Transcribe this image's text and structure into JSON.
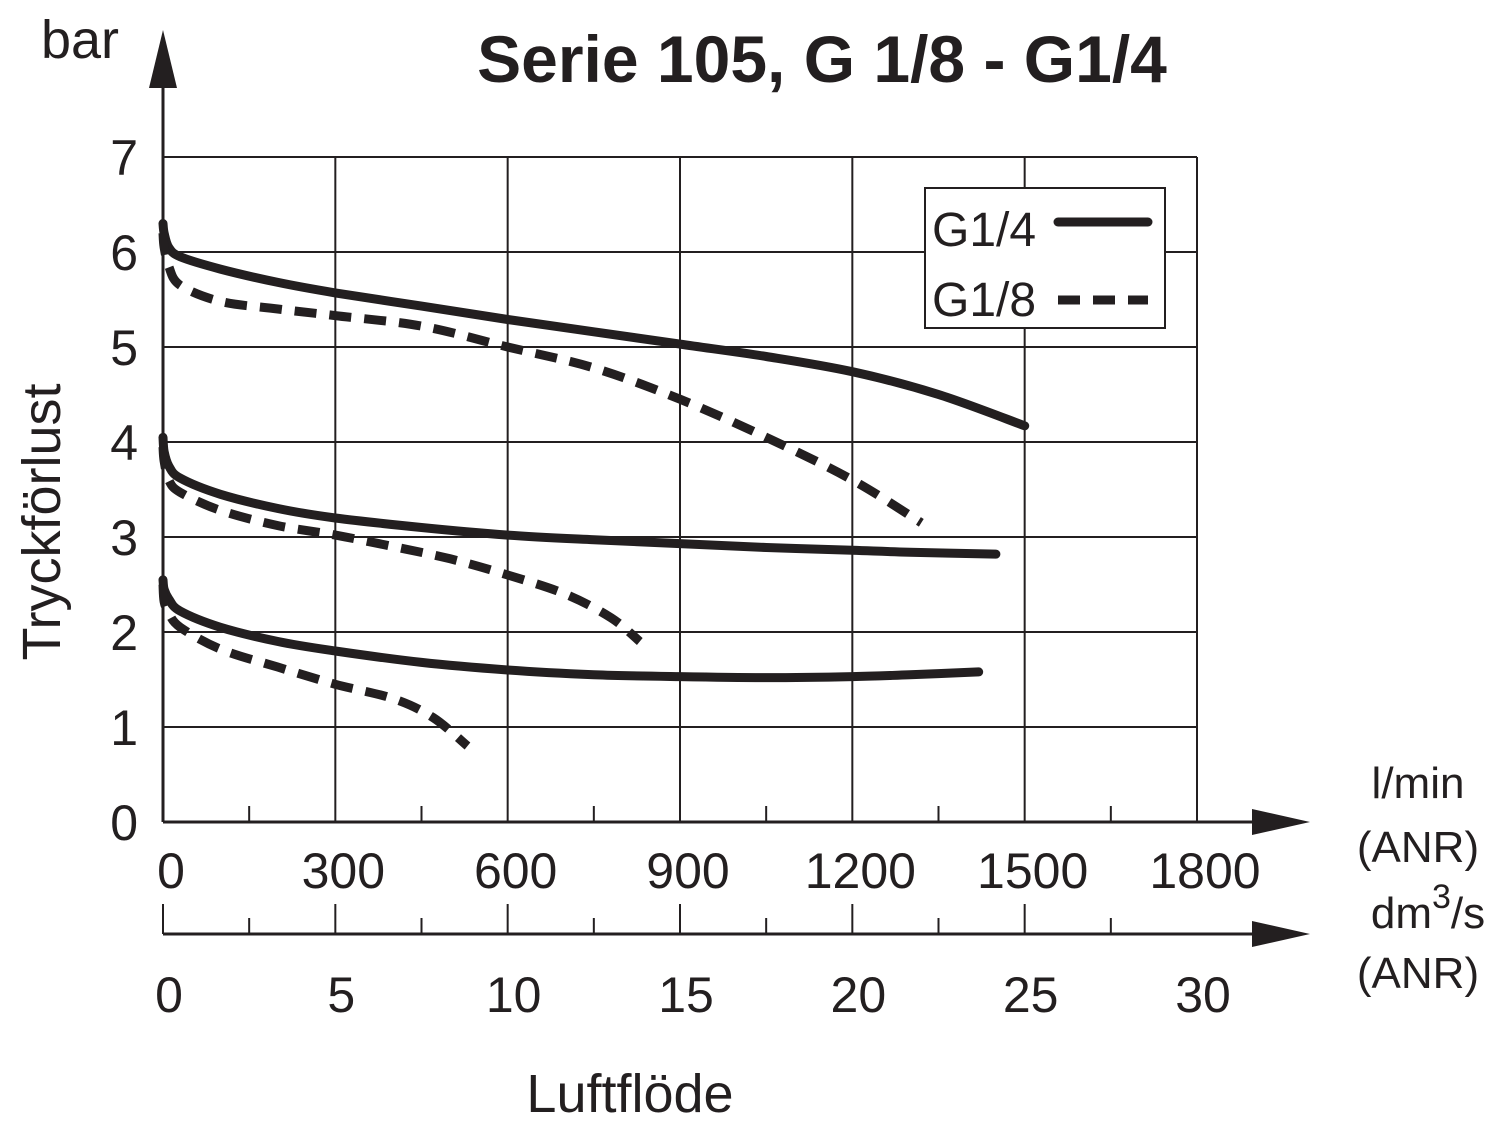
{
  "chart_data": {
    "type": "line",
    "title": "Serie 105, G 1/8 - G1/4",
    "ylabel": "Tryckförlust",
    "yunit": "bar",
    "xlabel": "Luftflöde",
    "ylim": [
      0,
      7
    ],
    "yticks": [
      "0",
      "1",
      "2",
      "3",
      "4",
      "5",
      "6",
      "7"
    ],
    "xlim": [
      0,
      1800
    ],
    "xticks_primary": [
      "0",
      "300",
      "600",
      "900",
      "1200",
      "1500",
      "1800"
    ],
    "xticks_secondary": [
      "0",
      "5",
      "10",
      "15",
      "20",
      "25",
      "30"
    ],
    "x_unit_primary": [
      "l/min",
      "(ANR)"
    ],
    "x_unit_secondary": {
      "base": "dm",
      "sup": "3",
      "tail": "/s",
      "line2": "(ANR)"
    },
    "grid": true,
    "legend_position": "top-right",
    "legend": [
      {
        "label": "G1/4",
        "style": "solid"
      },
      {
        "label": "G1/8",
        "style": "dashed"
      }
    ],
    "series": [
      {
        "legend": "G1/4",
        "style": "solid",
        "x": [
          0,
          2,
          10,
          30,
          100,
          200,
          300,
          450,
          600,
          750,
          900,
          1050,
          1200,
          1350,
          1500
        ],
        "y": [
          6.3,
          6.2,
          6.05,
          5.95,
          5.82,
          5.68,
          5.57,
          5.43,
          5.29,
          5.16,
          5.03,
          4.9,
          4.74,
          4.5,
          4.17
        ]
      },
      {
        "legend": "G1/8",
        "style": "dashed",
        "x": [
          0,
          2,
          10,
          30,
          100,
          200,
          300,
          450,
          600,
          750,
          900,
          1050,
          1200,
          1320
        ],
        "y": [
          6.2,
          6.05,
          5.85,
          5.65,
          5.48,
          5.4,
          5.33,
          5.22,
          5.0,
          4.78,
          4.45,
          4.05,
          3.6,
          3.15
        ]
      },
      {
        "legend": "G1/4",
        "style": "solid",
        "x": [
          0,
          2,
          10,
          30,
          100,
          200,
          300,
          450,
          600,
          750,
          900,
          1050,
          1200,
          1300,
          1450
        ],
        "y": [
          4.05,
          3.9,
          3.75,
          3.62,
          3.45,
          3.3,
          3.2,
          3.1,
          3.02,
          2.97,
          2.93,
          2.89,
          2.86,
          2.84,
          2.82
        ]
      },
      {
        "legend": "G1/8",
        "style": "dashed",
        "x": [
          0,
          2,
          10,
          30,
          100,
          200,
          300,
          400,
          500,
          600,
          700,
          780,
          830
        ],
        "y": [
          3.95,
          3.8,
          3.6,
          3.47,
          3.28,
          3.12,
          3.02,
          2.9,
          2.77,
          2.6,
          2.4,
          2.15,
          1.9
        ]
      },
      {
        "legend": "G1/4",
        "style": "solid",
        "x": [
          0,
          2,
          10,
          30,
          100,
          200,
          300,
          450,
          600,
          750,
          900,
          1050,
          1200,
          1300,
          1420
        ],
        "y": [
          2.55,
          2.45,
          2.35,
          2.22,
          2.05,
          1.9,
          1.8,
          1.68,
          1.6,
          1.55,
          1.53,
          1.52,
          1.53,
          1.55,
          1.58
        ]
      },
      {
        "legend": "G1/8",
        "style": "dashed",
        "x": [
          0,
          2,
          10,
          30,
          100,
          200,
          300,
          400,
          470,
          530
        ],
        "y": [
          2.5,
          2.32,
          2.2,
          2.05,
          1.82,
          1.63,
          1.45,
          1.3,
          1.1,
          0.8
        ]
      }
    ]
  }
}
